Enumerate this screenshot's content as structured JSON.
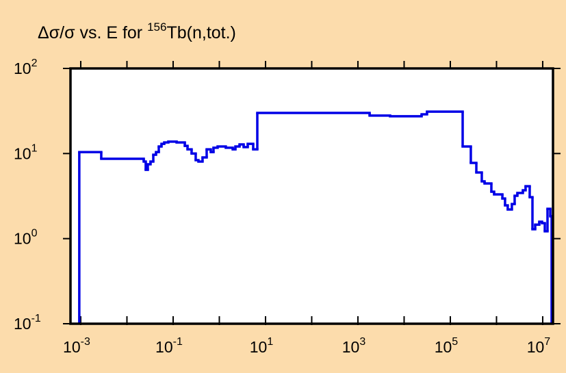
{
  "chart_data": {
    "type": "line",
    "step": "post",
    "title": [
      "Δσ/σ vs. E for ",
      "156",
      "Tb(n,tot.)"
    ],
    "xscale": "log",
    "yscale": "log",
    "grid": false,
    "xlim": [
      0.0006,
      16700000
    ],
    "ylim": [
      0.1,
      100
    ],
    "xticks": [
      {
        "value": 0.001,
        "label": "10",
        "exponent": "-3"
      },
      {
        "value": 0.1,
        "label": "10",
        "exponent": "-1"
      },
      {
        "value": 10,
        "label": "10",
        "exponent": "1"
      },
      {
        "value": 1000,
        "label": "10",
        "exponent": "3"
      },
      {
        "value": 100000,
        "label": "10",
        "exponent": "5"
      },
      {
        "value": 10000000,
        "label": "10",
        "exponent": "7"
      }
    ],
    "xminor_ticks": [
      0.01,
      1,
      100,
      10000,
      1000000
    ],
    "yticks": [
      {
        "value": 100,
        "label": "10",
        "exponent": "2"
      },
      {
        "value": 10,
        "label": "10",
        "exponent": "1"
      },
      {
        "value": 1,
        "label": "10",
        "exponent": "0"
      },
      {
        "value": 0.1,
        "label": "10",
        "exponent": "-1"
      }
    ],
    "series": [
      {
        "color": "#0000e6",
        "x": [
          0.00093,
          0.00278,
          0.0231,
          0.0255,
          0.0283,
          0.0324,
          0.0372,
          0.0426,
          0.0489,
          0.056,
          0.0642,
          0.0787,
          0.119,
          0.179,
          0.205,
          0.251,
          0.308,
          0.353,
          0.433,
          0.532,
          0.653,
          0.748,
          0.918,
          1.38,
          1.95,
          2.23,
          2.74,
          3.36,
          4.12,
          5.41,
          6.64,
          1790,
          4970,
          23900,
          31300,
          185000,
          278000,
          366000,
          480000,
          551000,
          774000,
          887000,
          1340000,
          1530000,
          1750000,
          2150000,
          2470000,
          2830000,
          3720000,
          4260000,
          5230000,
          6000000,
          6880000,
          8430000,
          9670000,
          11100000,
          12700000,
          14600000,
          15600000
        ],
        "values": [
          10.4,
          8.67,
          8.05,
          6.44,
          7.48,
          8.05,
          9.68,
          10.4,
          12.1,
          13.0,
          13.5,
          13.8,
          13.5,
          12.3,
          11.2,
          10.0,
          8.36,
          8.05,
          9.0,
          11.2,
          10.4,
          11.7,
          12.1,
          11.7,
          11.2,
          12.1,
          12.8,
          11.9,
          13.0,
          11.2,
          30.0,
          27.9,
          27.4,
          28.9,
          31.1,
          12.1,
          7.76,
          5.99,
          4.71,
          4.45,
          3.56,
          3.31,
          2.96,
          2.46,
          2.2,
          2.55,
          3.19,
          3.44,
          3.7,
          4.13,
          3.07,
          1.29,
          1.46,
          1.58,
          1.52,
          1.22,
          2.24,
          1.83,
          1.83
        ]
      }
    ]
  }
}
